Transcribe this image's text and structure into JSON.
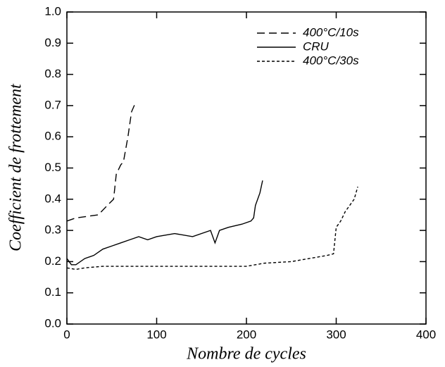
{
  "chart_data": {
    "type": "line",
    "xlabel": "Nombre de cycles",
    "ylabel": "Coefficient de frottement",
    "xlim": [
      0,
      400
    ],
    "xticks": [
      0,
      100,
      200,
      300,
      400
    ],
    "ylim": [
      0,
      1
    ],
    "yticks": [
      {
        "value": 0,
        "label": "0.0"
      },
      0.1,
      0.2,
      0.3,
      0.4,
      0.5,
      0.6,
      0.7,
      0.8,
      0.9,
      {
        "value": 1,
        "label": "1.0"
      }
    ],
    "legend": "upper right",
    "series": [
      {
        "name": "400°C/10s",
        "color": "#000000",
        "dash": "dashed",
        "x": [
          0,
          10,
          35,
          45,
          52,
          55,
          60,
          63,
          68,
          72,
          75,
          78
        ],
        "values": [
          0.33,
          0.34,
          0.35,
          0.38,
          0.4,
          0.48,
          0.51,
          0.52,
          0.6,
          0.68,
          0.7,
          0.7
        ]
      },
      {
        "name": "CRU",
        "color": "#000000",
        "dash": "solid",
        "x": [
          0,
          5,
          10,
          20,
          30,
          40,
          50,
          60,
          70,
          80,
          90,
          100,
          120,
          140,
          160,
          165,
          170,
          180,
          195,
          205,
          208,
          210,
          215,
          218
        ],
        "values": [
          0.21,
          0.19,
          0.19,
          0.21,
          0.22,
          0.24,
          0.25,
          0.26,
          0.27,
          0.28,
          0.27,
          0.28,
          0.29,
          0.28,
          0.3,
          0.26,
          0.3,
          0.31,
          0.32,
          0.33,
          0.34,
          0.38,
          0.42,
          0.46
        ]
      },
      {
        "name": "400°C/30s",
        "color": "#000000",
        "dash": "dotted",
        "x": [
          0,
          10,
          20,
          40,
          100,
          150,
          200,
          220,
          250,
          270,
          290,
          297,
          300,
          305,
          310,
          315,
          320,
          324
        ],
        "values": [
          0.18,
          0.175,
          0.18,
          0.185,
          0.185,
          0.185,
          0.185,
          0.195,
          0.2,
          0.21,
          0.22,
          0.225,
          0.31,
          0.33,
          0.36,
          0.38,
          0.4,
          0.44
        ]
      }
    ]
  }
}
